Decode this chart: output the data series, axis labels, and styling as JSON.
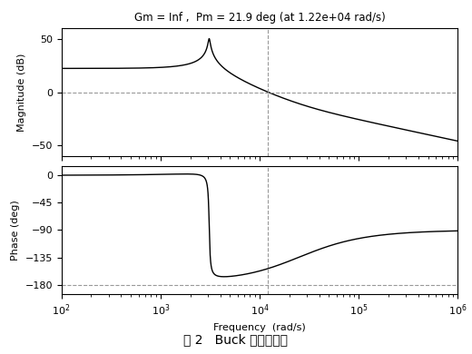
{
  "title": "Gm = Inf ,  Pm = 21.9 deg (at 1.22e+04 rad/s)",
  "xlabel": "Frequency  (rad/s)",
  "ylabel_mag": "Magnitude (dB)",
  "ylabel_phase": "Phase (deg)",
  "caption": "图 2   Buck 模型伯德图",
  "freq_min": 100,
  "freq_max": 1000000,
  "mag_ylim": [
    -60,
    60
  ],
  "mag_yticks": [
    -50,
    0,
    50
  ],
  "phase_ylim": [
    -195,
    15
  ],
  "phase_yticks": [
    0,
    -45,
    -90,
    -135,
    -180
  ],
  "crossover_freq_rad": 12200,
  "background_color": "#ffffff",
  "line_color": "#000000",
  "dashed_color": "#999999",
  "title_fontsize": 8.5,
  "label_fontsize": 8,
  "caption_fontsize": 10
}
